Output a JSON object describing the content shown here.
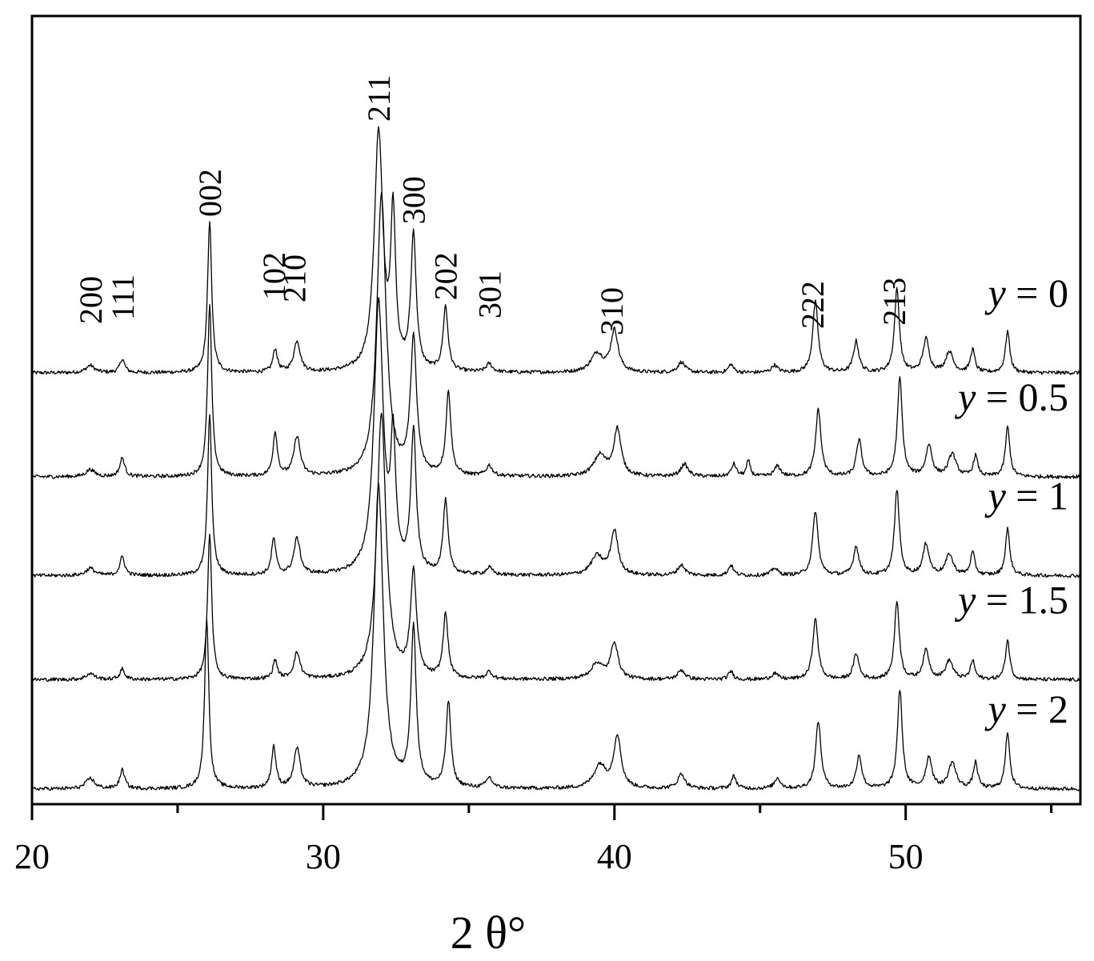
{
  "chart_data": {
    "type": "line",
    "title": "",
    "xlabel": "2 θ°",
    "ylabel": "",
    "xlim": [
      20,
      56
    ],
    "x_ticks": [
      20,
      30,
      40,
      50
    ],
    "y_ticks_shown": false,
    "grid": false,
    "legend": "none (series labelled at right end of each trace)",
    "peak_labels": [
      {
        "hkl": "200",
        "two_theta": 22.0
      },
      {
        "hkl": "111",
        "two_theta": 23.1
      },
      {
        "hkl": "002",
        "two_theta": 26.1
      },
      {
        "hkl": "102",
        "two_theta": 28.3
      },
      {
        "hkl": "210",
        "two_theta": 29.0
      },
      {
        "hkl": "211",
        "two_theta": 31.9
      },
      {
        "hkl": "300",
        "two_theta": 33.1
      },
      {
        "hkl": "202",
        "two_theta": 34.2
      },
      {
        "hkl": "301",
        "two_theta": 35.7
      },
      {
        "hkl": "310",
        "two_theta": 39.9
      },
      {
        "hkl": "222",
        "two_theta": 46.8
      },
      {
        "hkl": "213",
        "two_theta": 49.6
      }
    ],
    "series": [
      {
        "name_var": "y",
        "name_eq": " = ",
        "name_val": "0",
        "offset": 4.0,
        "peaks": [
          {
            "x": 22.0,
            "h": 0.07,
            "w": 0.35
          },
          {
            "x": 23.1,
            "h": 0.13,
            "w": 0.2
          },
          {
            "x": 26.1,
            "h": 1.45,
            "w": 0.17
          },
          {
            "x": 28.35,
            "h": 0.22,
            "w": 0.18
          },
          {
            "x": 29.1,
            "h": 0.3,
            "w": 0.26
          },
          {
            "x": 31.9,
            "h": 2.3,
            "w": 0.35
          },
          {
            "x": 32.4,
            "h": 1.45,
            "w": 0.2
          },
          {
            "x": 33.1,
            "h": 1.3,
            "w": 0.22
          },
          {
            "x": 34.2,
            "h": 0.62,
            "w": 0.2
          },
          {
            "x": 35.7,
            "h": 0.08,
            "w": 0.25
          },
          {
            "x": 39.4,
            "h": 0.18,
            "w": 0.5
          },
          {
            "x": 40.0,
            "h": 0.4,
            "w": 0.3
          },
          {
            "x": 42.3,
            "h": 0.1,
            "w": 0.3
          },
          {
            "x": 44.0,
            "h": 0.08,
            "w": 0.2
          },
          {
            "x": 45.5,
            "h": 0.07,
            "w": 0.25
          },
          {
            "x": 46.9,
            "h": 0.68,
            "w": 0.22
          },
          {
            "x": 48.3,
            "h": 0.3,
            "w": 0.22
          },
          {
            "x": 49.7,
            "h": 0.8,
            "w": 0.2
          },
          {
            "x": 50.7,
            "h": 0.32,
            "w": 0.25
          },
          {
            "x": 51.5,
            "h": 0.2,
            "w": 0.3
          },
          {
            "x": 52.3,
            "h": 0.22,
            "w": 0.18
          },
          {
            "x": 53.5,
            "h": 0.4,
            "w": 0.18
          }
        ]
      },
      {
        "name_var": "y",
        "name_eq": " = ",
        "name_val": "0.5",
        "offset": 3.0,
        "peaks": [
          {
            "x": 22.0,
            "h": 0.07,
            "w": 0.35
          },
          {
            "x": 23.1,
            "h": 0.18,
            "w": 0.2
          },
          {
            "x": 26.1,
            "h": 1.65,
            "w": 0.17
          },
          {
            "x": 28.35,
            "h": 0.42,
            "w": 0.18
          },
          {
            "x": 29.1,
            "h": 0.38,
            "w": 0.26
          },
          {
            "x": 32.0,
            "h": 2.7,
            "w": 0.38
          },
          {
            "x": 33.1,
            "h": 1.3,
            "w": 0.25
          },
          {
            "x": 34.3,
            "h": 0.8,
            "w": 0.2
          },
          {
            "x": 35.7,
            "h": 0.1,
            "w": 0.25
          },
          {
            "x": 39.5,
            "h": 0.2,
            "w": 0.5
          },
          {
            "x": 40.1,
            "h": 0.45,
            "w": 0.3
          },
          {
            "x": 42.4,
            "h": 0.12,
            "w": 0.3
          },
          {
            "x": 44.1,
            "h": 0.12,
            "w": 0.2
          },
          {
            "x": 44.6,
            "h": 0.15,
            "w": 0.15
          },
          {
            "x": 45.6,
            "h": 0.1,
            "w": 0.25
          },
          {
            "x": 47.0,
            "h": 0.65,
            "w": 0.22
          },
          {
            "x": 48.4,
            "h": 0.35,
            "w": 0.22
          },
          {
            "x": 49.8,
            "h": 0.95,
            "w": 0.2
          },
          {
            "x": 50.8,
            "h": 0.3,
            "w": 0.25
          },
          {
            "x": 51.6,
            "h": 0.22,
            "w": 0.3
          },
          {
            "x": 52.4,
            "h": 0.2,
            "w": 0.18
          },
          {
            "x": 53.5,
            "h": 0.48,
            "w": 0.18
          }
        ]
      },
      {
        "name_var": "y",
        "name_eq": " = ",
        "name_val": "1",
        "offset": 2.05,
        "peaks": [
          {
            "x": 22.0,
            "h": 0.07,
            "w": 0.35
          },
          {
            "x": 23.1,
            "h": 0.18,
            "w": 0.2
          },
          {
            "x": 26.1,
            "h": 1.55,
            "w": 0.17
          },
          {
            "x": 28.3,
            "h": 0.35,
            "w": 0.18
          },
          {
            "x": 29.1,
            "h": 0.35,
            "w": 0.26
          },
          {
            "x": 31.9,
            "h": 2.6,
            "w": 0.38
          },
          {
            "x": 32.4,
            "h": 1.2,
            "w": 0.2
          },
          {
            "x": 33.1,
            "h": 1.35,
            "w": 0.22
          },
          {
            "x": 34.2,
            "h": 0.7,
            "w": 0.2
          },
          {
            "x": 35.7,
            "h": 0.07,
            "w": 0.25
          },
          {
            "x": 39.4,
            "h": 0.18,
            "w": 0.5
          },
          {
            "x": 40.0,
            "h": 0.42,
            "w": 0.3
          },
          {
            "x": 42.3,
            "h": 0.1,
            "w": 0.3
          },
          {
            "x": 44.0,
            "h": 0.1,
            "w": 0.2
          },
          {
            "x": 45.5,
            "h": 0.07,
            "w": 0.25
          },
          {
            "x": 46.9,
            "h": 0.62,
            "w": 0.22
          },
          {
            "x": 48.3,
            "h": 0.28,
            "w": 0.22
          },
          {
            "x": 49.7,
            "h": 0.82,
            "w": 0.2
          },
          {
            "x": 50.7,
            "h": 0.3,
            "w": 0.25
          },
          {
            "x": 51.5,
            "h": 0.2,
            "w": 0.3
          },
          {
            "x": 52.3,
            "h": 0.22,
            "w": 0.18
          },
          {
            "x": 53.5,
            "h": 0.45,
            "w": 0.18
          }
        ]
      },
      {
        "name_var": "y",
        "name_eq": " = ",
        "name_val": "1.5",
        "offset": 1.05,
        "peaks": [
          {
            "x": 22.0,
            "h": 0.06,
            "w": 0.35
          },
          {
            "x": 23.1,
            "h": 0.1,
            "w": 0.2
          },
          {
            "x": 26.1,
            "h": 1.4,
            "w": 0.17
          },
          {
            "x": 28.35,
            "h": 0.18,
            "w": 0.18
          },
          {
            "x": 29.1,
            "h": 0.25,
            "w": 0.26
          },
          {
            "x": 32.0,
            "h": 2.55,
            "w": 0.38
          },
          {
            "x": 33.1,
            "h": 1.0,
            "w": 0.25
          },
          {
            "x": 34.2,
            "h": 0.62,
            "w": 0.2
          },
          {
            "x": 35.7,
            "h": 0.07,
            "w": 0.25
          },
          {
            "x": 39.4,
            "h": 0.15,
            "w": 0.5
          },
          {
            "x": 40.0,
            "h": 0.35,
            "w": 0.3
          },
          {
            "x": 42.3,
            "h": 0.09,
            "w": 0.3
          },
          {
            "x": 44.0,
            "h": 0.08,
            "w": 0.2
          },
          {
            "x": 45.5,
            "h": 0.06,
            "w": 0.25
          },
          {
            "x": 46.9,
            "h": 0.58,
            "w": 0.22
          },
          {
            "x": 48.3,
            "h": 0.25,
            "w": 0.22
          },
          {
            "x": 49.7,
            "h": 0.75,
            "w": 0.2
          },
          {
            "x": 50.7,
            "h": 0.28,
            "w": 0.25
          },
          {
            "x": 51.5,
            "h": 0.18,
            "w": 0.3
          },
          {
            "x": 52.3,
            "h": 0.18,
            "w": 0.18
          },
          {
            "x": 53.5,
            "h": 0.38,
            "w": 0.18
          }
        ]
      },
      {
        "name_var": "y",
        "name_eq": " = ",
        "name_val": "2",
        "offset": 0.0,
        "peaks": [
          {
            "x": 22.0,
            "h": 0.1,
            "w": 0.35
          },
          {
            "x": 23.1,
            "h": 0.18,
            "w": 0.2
          },
          {
            "x": 26.0,
            "h": 1.65,
            "w": 0.17
          },
          {
            "x": 28.3,
            "h": 0.4,
            "w": 0.18
          },
          {
            "x": 29.1,
            "h": 0.38,
            "w": 0.26
          },
          {
            "x": 31.9,
            "h": 2.92,
            "w": 0.38
          },
          {
            "x": 33.1,
            "h": 1.52,
            "w": 0.22
          },
          {
            "x": 34.3,
            "h": 0.82,
            "w": 0.2
          },
          {
            "x": 35.7,
            "h": 0.1,
            "w": 0.25
          },
          {
            "x": 39.5,
            "h": 0.22,
            "w": 0.5
          },
          {
            "x": 40.1,
            "h": 0.5,
            "w": 0.3
          },
          {
            "x": 42.3,
            "h": 0.14,
            "w": 0.3
          },
          {
            "x": 44.1,
            "h": 0.12,
            "w": 0.2
          },
          {
            "x": 45.6,
            "h": 0.1,
            "w": 0.25
          },
          {
            "x": 47.0,
            "h": 0.65,
            "w": 0.22
          },
          {
            "x": 48.4,
            "h": 0.32,
            "w": 0.22
          },
          {
            "x": 49.8,
            "h": 0.95,
            "w": 0.2
          },
          {
            "x": 50.8,
            "h": 0.3,
            "w": 0.25
          },
          {
            "x": 51.6,
            "h": 0.25,
            "w": 0.3
          },
          {
            "x": 52.4,
            "h": 0.25,
            "w": 0.18
          },
          {
            "x": 53.5,
            "h": 0.55,
            "w": 0.18
          }
        ]
      }
    ]
  }
}
